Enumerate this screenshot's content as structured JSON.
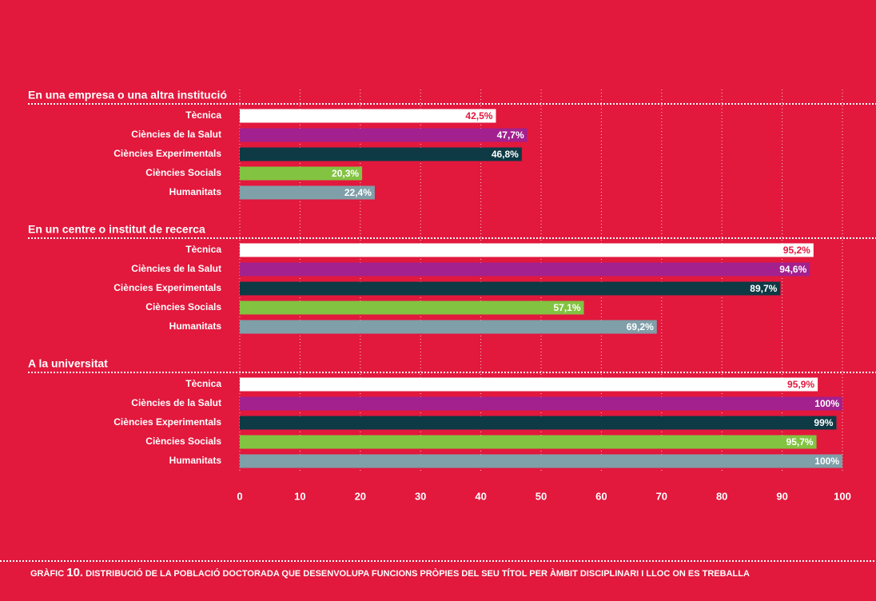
{
  "chart_data": {
    "type": "bar",
    "orientation": "horizontal",
    "categories": [
      "En una empresa o una altra institució",
      "En un centre o institut de recerca",
      "A la universitat"
    ],
    "series": [
      {
        "name": "Tècnica",
        "color": "#ffffff",
        "label_color": "#e2183d",
        "values": [
          42.5,
          95.2,
          95.9
        ],
        "value_labels": [
          "42,5%",
          "95,2%",
          "95,9%"
        ]
      },
      {
        "name": "Ciències de la Salut",
        "color": "#a3218f",
        "label_color": "#ffffff",
        "values": [
          47.7,
          94.6,
          100
        ],
        "value_labels": [
          "47,7%",
          "94,6%",
          "100%"
        ]
      },
      {
        "name": "Ciències Experimentals",
        "color": "#0d3a45",
        "label_color": "#ffffff",
        "values": [
          46.8,
          89.7,
          99
        ],
        "value_labels": [
          "46,8%",
          "89,7%",
          "99%"
        ]
      },
      {
        "name": "Ciències Socials",
        "color": "#82c341",
        "label_color": "#ffffff",
        "values": [
          20.3,
          57.1,
          95.7
        ],
        "value_labels": [
          "20,3%",
          "57,1%",
          "95,7%"
        ]
      },
      {
        "name": "Humanitats",
        "color": "#7f9fa9",
        "label_color": "#ffffff",
        "values": [
          22.4,
          69.2,
          100
        ],
        "value_labels": [
          "22,4%",
          "69,2%",
          "100%"
        ]
      }
    ],
    "xlim": [
      0,
      100
    ],
    "xticks": [
      0,
      10,
      20,
      30,
      40,
      50,
      60,
      70,
      80,
      90,
      100
    ],
    "grid": true,
    "caption": {
      "label": "GRÀFIC",
      "number": "10.",
      "text": "DISTRIBUCIÓ DE LA POBLACIÓ DOCTORADA QUE DESENVOLUPA FUNCIONS PRÒPIES DEL SEU TÍTOL PER ÀMBIT DISCIPLINARI I LLOC ON ES TREBALLA"
    }
  }
}
